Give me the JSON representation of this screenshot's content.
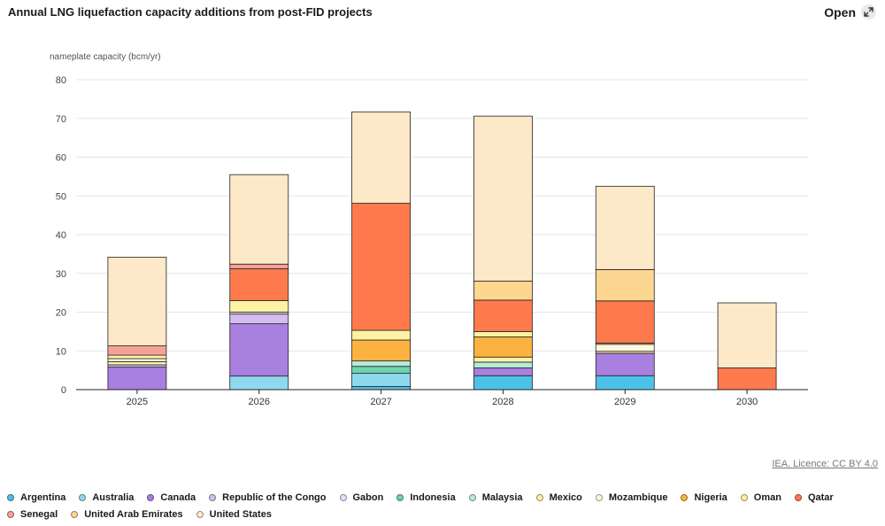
{
  "header": {
    "title": "Annual LNG liquefaction capacity additions from post-FID projects",
    "open_label": "Open"
  },
  "source": "IEA. Licence: CC BY 4.0",
  "chart_data": {
    "type": "bar",
    "stacked": true,
    "ylabel": "nameplate capacity (bcm/yr)",
    "ylim": [
      0,
      80
    ],
    "yticks": [
      0,
      10,
      20,
      30,
      40,
      50,
      60,
      70,
      80
    ],
    "categories": [
      "2025",
      "2026",
      "2027",
      "2028",
      "2029",
      "2030"
    ],
    "series": [
      {
        "name": "Argentina",
        "color": "#4cc2e8",
        "values": [
          0,
          0,
          0.8,
          3.6,
          3.6,
          0
        ]
      },
      {
        "name": "Australia",
        "color": "#8fd9ee",
        "values": [
          0,
          3.5,
          3.4,
          0,
          0,
          0
        ]
      },
      {
        "name": "Canada",
        "color": "#a97fe0",
        "values": [
          5.8,
          13.5,
          0,
          2,
          5.8,
          0
        ]
      },
      {
        "name": "Republic of the Congo",
        "color": "#d3bdf1",
        "values": [
          0.6,
          2.5,
          0,
          0,
          0,
          0
        ]
      },
      {
        "name": "Gabon",
        "color": "#e9def9",
        "values": [
          0,
          0.5,
          0,
          0,
          0,
          0
        ]
      },
      {
        "name": "Indonesia",
        "color": "#6cd4b0",
        "values": [
          0,
          0,
          1.8,
          0,
          0,
          0
        ]
      },
      {
        "name": "Malaysia",
        "color": "#b7ebd9",
        "values": [
          0,
          0,
          1.4,
          1.5,
          0,
          0
        ]
      },
      {
        "name": "Mexico",
        "color": "#fdf2a3",
        "values": [
          0.8,
          0,
          0,
          1.3,
          0.5,
          0
        ]
      },
      {
        "name": "Mozambique",
        "color": "#fffbe0",
        "values": [
          0.8,
          0,
          0,
          0,
          1.8,
          0
        ]
      },
      {
        "name": "Nigeria",
        "color": "#fbb23f",
        "values": [
          0,
          0,
          5.4,
          5.2,
          0,
          0
        ]
      },
      {
        "name": "Oman",
        "color": "#fdf2a3",
        "values": [
          0.9,
          3,
          2.5,
          1.4,
          0.3,
          0
        ]
      },
      {
        "name": "Qatar",
        "color": "#fe7a4d",
        "values": [
          0,
          8.2,
          32.8,
          8.1,
          10.9,
          5.6
        ]
      },
      {
        "name": "Senegal",
        "color": "#f4a298",
        "values": [
          2.4,
          1.2,
          0,
          0,
          0,
          0
        ]
      },
      {
        "name": "United Arab Emirates",
        "color": "#fdd692",
        "values": [
          0,
          0,
          0,
          4.9,
          8.1,
          0
        ]
      },
      {
        "name": "United States",
        "color": "#fde8c8",
        "values": [
          22.9,
          23.1,
          23.6,
          42.6,
          21.5,
          16.8
        ]
      }
    ]
  }
}
